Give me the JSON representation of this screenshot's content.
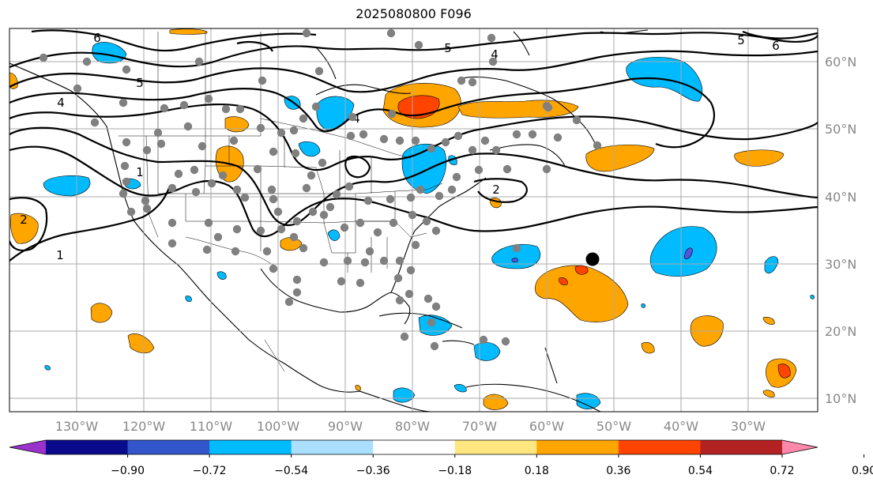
{
  "title": "2025080800 F096",
  "lon_labels": [
    "130°W",
    "120°W",
    "110°W",
    "100°W",
    "90°W",
    "80°W",
    "70°W",
    "60°W",
    "50°W",
    "40°W",
    "30°W"
  ],
  "lat_labels": [
    "60°N",
    "50°N",
    "40°N",
    "30°N",
    "20°N",
    "10°N"
  ],
  "colorbar": {
    "tick_labels": [
      "−0.90",
      "−0.72",
      "−0.54",
      "−0.36",
      "−0.18",
      "0.18",
      "0.36",
      "0.54",
      "0.72",
      "0.90"
    ],
    "colors": [
      "#9933cc",
      "#0a0a8c",
      "#3355cc",
      "#00bbff",
      "#aadfff",
      "#ffffff",
      "#ffe680",
      "#ffa500",
      "#ff4400",
      "#b22222",
      "#ff88aa"
    ],
    "extend": "both"
  },
  "contour_labels": [
    "6",
    "6",
    "5",
    "5",
    "4",
    "4",
    "4",
    "1",
    "1",
    "2",
    "2",
    "5"
  ],
  "colors": {
    "orange": "#ffa500",
    "red": "#ff4400",
    "blue": "#00bbff",
    "purple": "#5555dd",
    "station": "#808080",
    "storm": "#000000"
  }
}
